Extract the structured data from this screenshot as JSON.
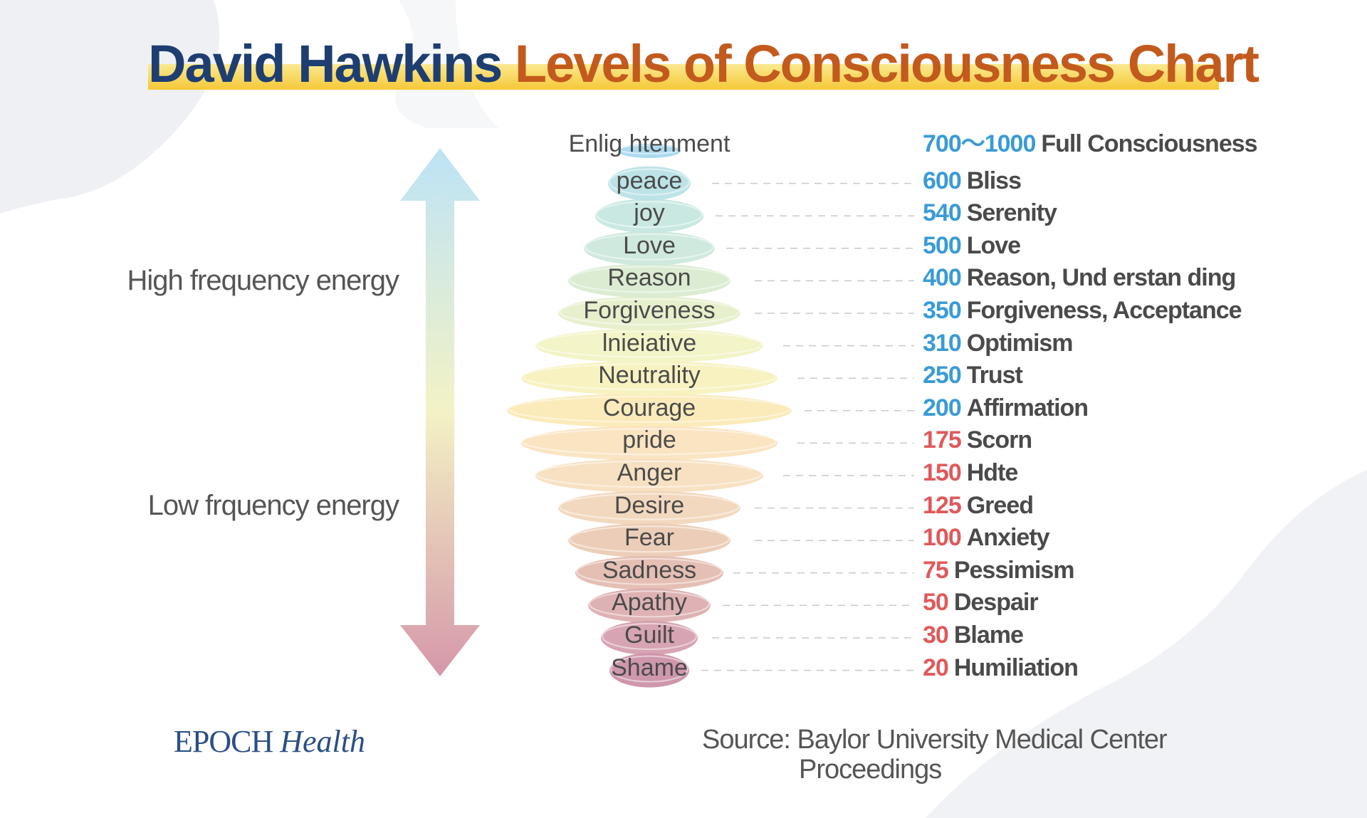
{
  "title": {
    "part1": "David Hawkins",
    "part2": "Levels of Consciousness Chart"
  },
  "side_labels": {
    "high": "High frequency energy",
    "low": "Low frquency energy"
  },
  "arrow_colors": {
    "top": "#bde3f6",
    "middle": "#f3f2c5",
    "bottom": "#d597a9"
  },
  "colors": {
    "high_number": "#3a9bd6",
    "low_number": "#e0595b",
    "name": "#4a4a4a",
    "title_dark": "#1e3e72",
    "title_accent": "#c35a1d"
  },
  "levels": [
    {
      "label": "Enlig htenment",
      "calibration": "700～1000",
      "description": "Full Consciousness",
      "tone": "high",
      "color": "#a8d8ef"
    },
    {
      "label": "peace",
      "calibration": "600",
      "description": "Bliss",
      "tone": "high",
      "color": "#b9e2e6"
    },
    {
      "label": "joy",
      "calibration": "540",
      "description": "Serenity",
      "tone": "high",
      "color": "#c6e7e0"
    },
    {
      "label": "Love",
      "calibration": "500",
      "description": "Love",
      "tone": "high",
      "color": "#cde8dc"
    },
    {
      "label": "Reason",
      "calibration": "400",
      "description": "Reason, Und erstan ding",
      "tone": "high",
      "color": "#d9ebd0"
    },
    {
      "label": "Forgiveness",
      "calibration": "350",
      "description": "Forgiveness, Acceptance",
      "tone": "high",
      "color": "#e6efca"
    },
    {
      "label": "lnieiative",
      "calibration": "310",
      "description": "Optimism",
      "tone": "high",
      "color": "#f2f3c4"
    },
    {
      "label": "Neutrality",
      "calibration": "250",
      "description": "Trust",
      "tone": "high",
      "color": "#f7f1bd"
    },
    {
      "label": "Courage",
      "calibration": "200",
      "description": "Affirmation",
      "tone": "high",
      "color": "#fbeab7"
    },
    {
      "label": "pride",
      "calibration": "175",
      "description": "Scorn",
      "tone": "low",
      "color": "#fbe3bf"
    },
    {
      "label": "Anger",
      "calibration": "150",
      "description": "Hdte",
      "tone": "low",
      "color": "#f7dfbf"
    },
    {
      "label": "Desire",
      "calibration": "125",
      "description": "Greed",
      "tone": "low",
      "color": "#f1d6bb"
    },
    {
      "label": "Fear",
      "calibration": "100",
      "description": "Anxiety",
      "tone": "low",
      "color": "#ebcbb4"
    },
    {
      "label": "Sadness",
      "calibration": "75",
      "description": "Pessimism",
      "tone": "low",
      "color": "#e4bcb0"
    },
    {
      "label": "Apathy",
      "calibration": "50",
      "description": "Despair",
      "tone": "low",
      "color": "#dcaeb0"
    },
    {
      "label": "Guilt",
      "calibration": "30",
      "description": "Blame",
      "tone": "low",
      "color": "#d49fae"
    },
    {
      "label": "Shame",
      "calibration": "20",
      "description": "Humiliation",
      "tone": "low",
      "color": "#cc91a8"
    }
  ],
  "logo": {
    "part1": "EPOCH",
    "part2": "Health"
  },
  "source": {
    "line1": "Source: Baylor University Medical Center",
    "line2": "Proceedings"
  }
}
